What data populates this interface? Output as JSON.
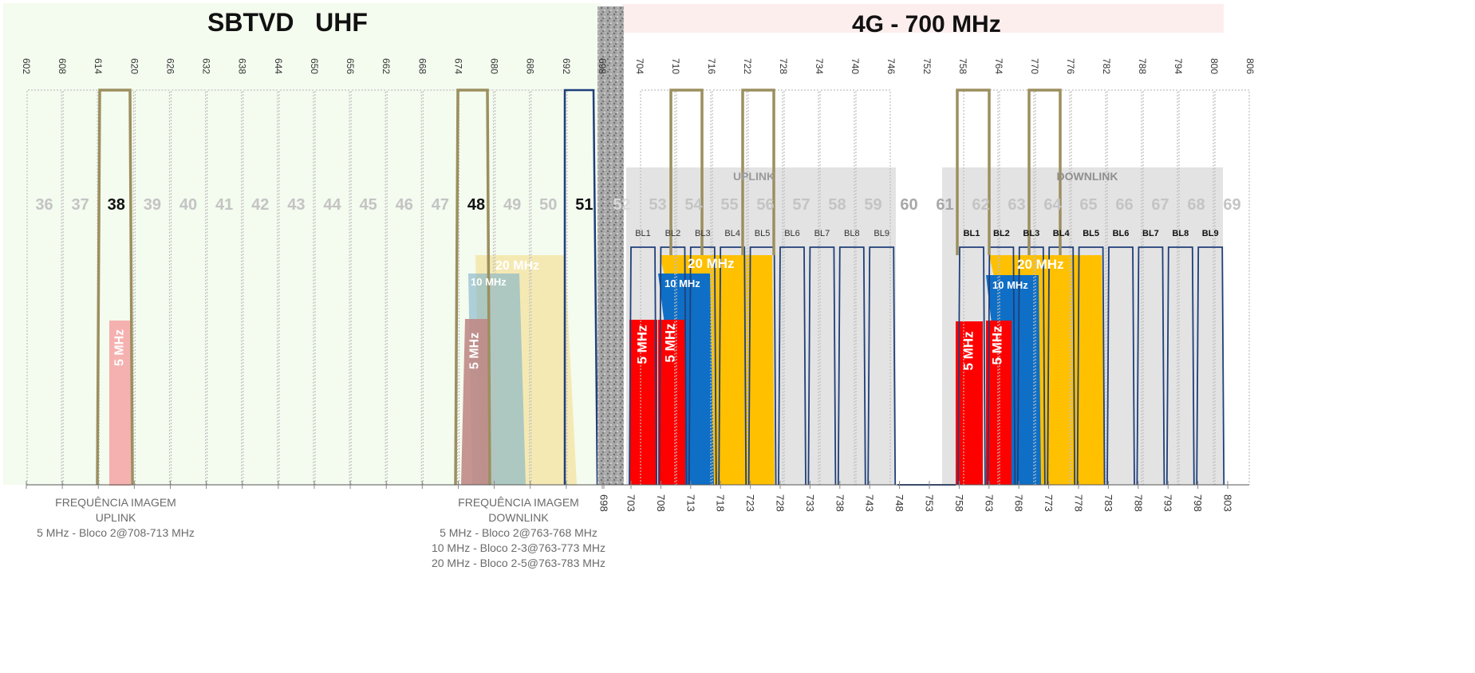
{
  "titles": {
    "sbtvd": "SBTVD   UHF",
    "lte": "4G - 700 MHz"
  },
  "colors": {
    "sbtvd_bg": "#f4fbef",
    "lte_header_bg": "#fdeeee",
    "separator": "#9a9a9a",
    "olive": "#9c8f5f",
    "navy": "#1f3f7a",
    "red": "#ff0000",
    "blue": "#0f6fc6",
    "amber": "#ffc000",
    "light_gray": "#e3e3e3",
    "faded_channel": "#c4c4c4"
  },
  "top_frequencies": [
    "602",
    "608",
    "614",
    "620",
    "626",
    "632",
    "638",
    "644",
    "650",
    "656",
    "662",
    "668",
    "674",
    "680",
    "686",
    "692",
    "698",
    "704",
    "710",
    "716",
    "722",
    "728",
    "734",
    "740",
    "746",
    "752",
    "758",
    "764",
    "770",
    "776",
    "782",
    "788",
    "794",
    "800",
    "806"
  ],
  "channels": [
    "36",
    "37",
    "38",
    "39",
    "40",
    "41",
    "42",
    "43",
    "44",
    "45",
    "46",
    "47",
    "48",
    "49",
    "50",
    "51",
    "52",
    "53",
    "54",
    "55",
    "56",
    "57",
    "58",
    "59",
    "60",
    "61",
    "62",
    "63",
    "64",
    "65",
    "66",
    "67",
    "68",
    "69"
  ],
  "bottom_frequencies": [
    "698",
    "703",
    "708",
    "713",
    "718",
    "723",
    "728",
    "733",
    "738",
    "743",
    "748",
    "753",
    "758",
    "763",
    "768",
    "773",
    "778",
    "783",
    "788",
    "793",
    "798",
    "803"
  ],
  "uplink": {
    "label": "UPLINK",
    "blocks": [
      "BL1",
      "BL2",
      "BL3",
      "BL4",
      "BL5",
      "BL6",
      "BL7",
      "BL8",
      "BL9"
    ]
  },
  "downlink": {
    "label": "DOWNLINK",
    "blocks": [
      "BL1",
      "BL2",
      "BL3",
      "BL4",
      "BL5",
      "BL6",
      "BL7",
      "BL8",
      "BL9"
    ]
  },
  "bandwidths": {
    "mhz5": "5 MHz",
    "mhz10": "10 MHz",
    "mhz20": "20 MHz"
  },
  "notes": {
    "uplink": [
      "FREQUÊNCIA IMAGEM",
      "UPLINK",
      "5 MHz - Bloco 2@708-713 MHz"
    ],
    "downlink": [
      "FREQUÊNCIA IMAGEM",
      "DOWNLINK",
      "5 MHz - Bloco 2@763-768 MHz",
      "10 MHz - Bloco 2-3@763-773 MHz",
      "20 MHz - Bloco 2-5@763-783 MHz"
    ]
  }
}
